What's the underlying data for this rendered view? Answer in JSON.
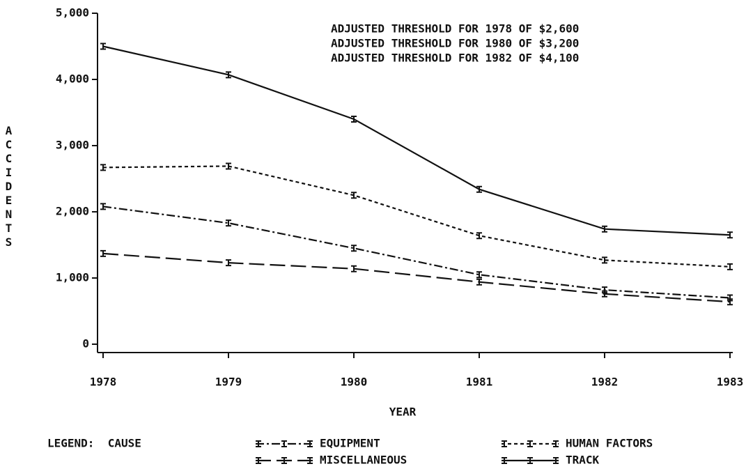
{
  "chart_data": {
    "type": "line",
    "annotations": [
      "ADJUSTED THRESHOLD FOR 1978 OF $2,600",
      "ADJUSTED THRESHOLD FOR 1980 OF $3,200",
      "ADJUSTED THRESHOLD FOR 1982 OF $4,100"
    ],
    "x_label": "YEAR",
    "y_label": "ACCIDENTS",
    "legend_title": "LEGEND:  CAUSE",
    "x": [
      1978,
      1979,
      1980,
      1981,
      1982,
      1983
    ],
    "xlim": [
      1978,
      1983
    ],
    "xticks": [
      1978,
      1979,
      1980,
      1981,
      1982,
      1983
    ],
    "ylim": [
      0,
      5000
    ],
    "yticks": [
      0,
      {
        "value": 1000,
        "label": "1,000"
      },
      {
        "value": 2000,
        "label": "2,000"
      },
      {
        "value": 3000,
        "label": "3,000"
      },
      {
        "value": 4000,
        "label": "4,000"
      },
      {
        "value": 5000,
        "label": "5,000"
      }
    ],
    "series": [
      {
        "name": "EQUIPMENT",
        "color": "#111111",
        "style": "dash-dot",
        "values": [
          2080,
          1830,
          1450,
          1050,
          820,
          700
        ]
      },
      {
        "name": "HUMAN FACTORS",
        "color": "#111111",
        "style": "dotted",
        "values": [
          2670,
          2690,
          2250,
          1640,
          1270,
          1170
        ]
      },
      {
        "name": "MISCELLANEOUS",
        "color": "#111111",
        "style": "long-dash",
        "values": [
          1370,
          1230,
          1140,
          940,
          760,
          640
        ]
      },
      {
        "name": "TRACK",
        "color": "#111111",
        "style": "solid",
        "values": [
          4500,
          4070,
          3400,
          2340,
          1740,
          1650
        ]
      }
    ]
  }
}
